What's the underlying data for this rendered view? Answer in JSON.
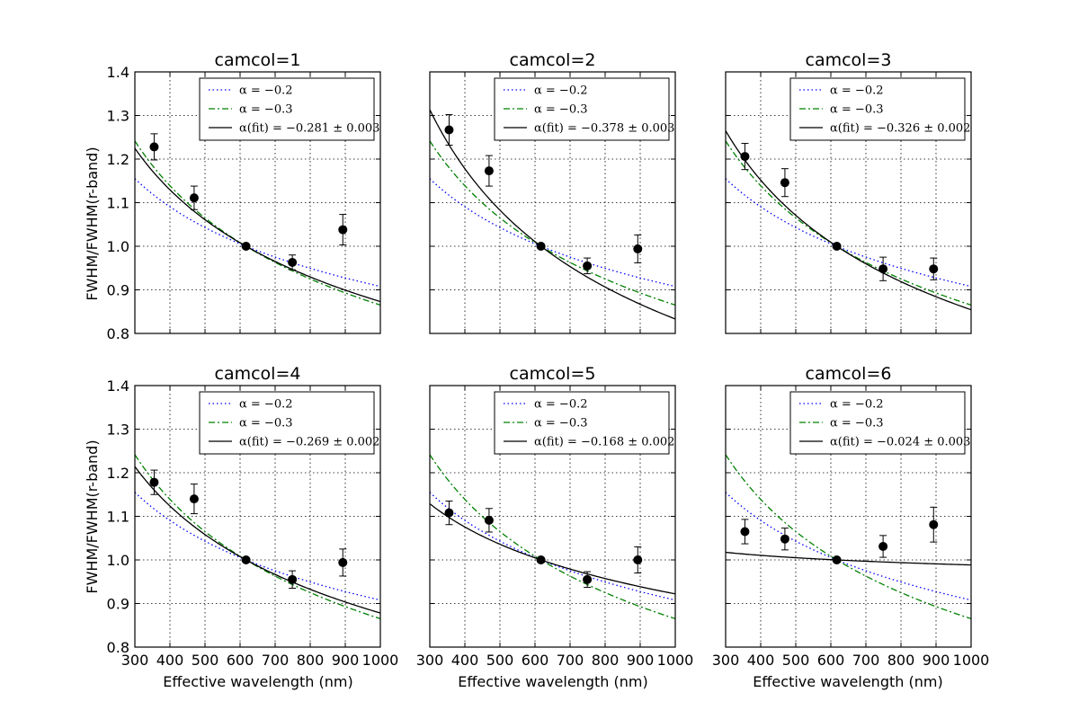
{
  "figure": {
    "ylabel": "FWHM/FWHM(r-band)",
    "xlabel": "Effective wavelength (nm)"
  },
  "colors": {
    "alpha_02": "#0000ff",
    "alpha_03": "#008000",
    "fit": "#000000",
    "points": "#000000"
  },
  "legend_labels": {
    "alpha_02": "α = −0.2",
    "alpha_03": "α = −0.3",
    "fit_prefix": "α(fit) = "
  },
  "chart_data": [
    {
      "type": "line",
      "title": "camcol=1",
      "fit_label": "−0.281 ± 0.003",
      "alpha_fit": -0.281,
      "xlim": [
        300,
        1000
      ],
      "ylim": [
        0.8,
        1.4
      ],
      "xticks": [
        "300",
        "400",
        "500",
        "600",
        "700",
        "800",
        "900",
        "1000"
      ],
      "yticks": [
        "0.8",
        "0.9",
        "1.0",
        "1.1",
        "1.2",
        "1.3",
        "1.4"
      ],
      "points": [
        {
          "x": 355,
          "y": 1.228,
          "err": 0.03
        },
        {
          "x": 469,
          "y": 1.111,
          "err": 0.027
        },
        {
          "x": 617,
          "y": 1.0,
          "err": 0.0
        },
        {
          "x": 749,
          "y": 0.963,
          "err": 0.017
        },
        {
          "x": 893,
          "y": 1.038,
          "err": 0.035
        }
      ]
    },
    {
      "type": "line",
      "title": "camcol=2",
      "fit_label": "−0.378 ± 0.003",
      "alpha_fit": -0.378,
      "xlim": [
        300,
        1000
      ],
      "ylim": [
        0.8,
        1.4
      ],
      "xticks": [
        "300",
        "400",
        "500",
        "600",
        "700",
        "800",
        "900",
        "1000"
      ],
      "yticks": [
        "0.8",
        "0.9",
        "1.0",
        "1.1",
        "1.2",
        "1.3",
        "1.4"
      ],
      "points": [
        {
          "x": 355,
          "y": 1.267,
          "err": 0.035
        },
        {
          "x": 469,
          "y": 1.173,
          "err": 0.035
        },
        {
          "x": 617,
          "y": 1.0,
          "err": 0.0
        },
        {
          "x": 749,
          "y": 0.955,
          "err": 0.018
        },
        {
          "x": 893,
          "y": 0.994,
          "err": 0.032
        }
      ]
    },
    {
      "type": "line",
      "title": "camcol=3",
      "fit_label": "−0.326 ± 0.002",
      "alpha_fit": -0.326,
      "xlim": [
        300,
        1000
      ],
      "ylim": [
        0.8,
        1.4
      ],
      "xticks": [
        "300",
        "400",
        "500",
        "600",
        "700",
        "800",
        "900",
        "1000"
      ],
      "yticks": [
        "0.8",
        "0.9",
        "1.0",
        "1.1",
        "1.2",
        "1.3",
        "1.4"
      ],
      "points": [
        {
          "x": 355,
          "y": 1.206,
          "err": 0.03
        },
        {
          "x": 469,
          "y": 1.146,
          "err": 0.032
        },
        {
          "x": 617,
          "y": 1.0,
          "err": 0.0
        },
        {
          "x": 749,
          "y": 0.948,
          "err": 0.027
        },
        {
          "x": 893,
          "y": 0.948,
          "err": 0.025
        }
      ]
    },
    {
      "type": "line",
      "title": "camcol=4",
      "fit_label": "−0.269 ± 0.002",
      "alpha_fit": -0.269,
      "xlim": [
        300,
        1000
      ],
      "ylim": [
        0.8,
        1.4
      ],
      "xticks": [
        "300",
        "400",
        "500",
        "600",
        "700",
        "800",
        "900",
        "1000"
      ],
      "yticks": [
        "0.8",
        "0.9",
        "1.0",
        "1.1",
        "1.2",
        "1.3",
        "1.4"
      ],
      "points": [
        {
          "x": 355,
          "y": 1.178,
          "err": 0.028
        },
        {
          "x": 469,
          "y": 1.14,
          "err": 0.034
        },
        {
          "x": 617,
          "y": 1.0,
          "err": 0.0
        },
        {
          "x": 749,
          "y": 0.955,
          "err": 0.02
        },
        {
          "x": 893,
          "y": 0.994,
          "err": 0.031
        }
      ]
    },
    {
      "type": "line",
      "title": "camcol=5",
      "fit_label": "−0.168 ± 0.002",
      "alpha_fit": -0.168,
      "xlim": [
        300,
        1000
      ],
      "ylim": [
        0.8,
        1.4
      ],
      "xticks": [
        "300",
        "400",
        "500",
        "600",
        "700",
        "800",
        "900",
        "1000"
      ],
      "yticks": [
        "0.8",
        "0.9",
        "1.0",
        "1.1",
        "1.2",
        "1.3",
        "1.4"
      ],
      "points": [
        {
          "x": 355,
          "y": 1.108,
          "err": 0.027
        },
        {
          "x": 469,
          "y": 1.091,
          "err": 0.027
        },
        {
          "x": 617,
          "y": 1.0,
          "err": 0.0
        },
        {
          "x": 749,
          "y": 0.955,
          "err": 0.018
        },
        {
          "x": 893,
          "y": 1.0,
          "err": 0.03
        }
      ]
    },
    {
      "type": "line",
      "title": "camcol=6",
      "fit_label": "−0.024 ± 0.003",
      "alpha_fit": -0.024,
      "xlim": [
        300,
        1000
      ],
      "ylim": [
        0.8,
        1.4
      ],
      "xticks": [
        "300",
        "400",
        "500",
        "600",
        "700",
        "800",
        "900",
        "1000"
      ],
      "yticks": [
        "0.8",
        "0.9",
        "1.0",
        "1.1",
        "1.2",
        "1.3",
        "1.4"
      ],
      "points": [
        {
          "x": 355,
          "y": 1.065,
          "err": 0.028
        },
        {
          "x": 469,
          "y": 1.048,
          "err": 0.025
        },
        {
          "x": 617,
          "y": 1.0,
          "err": 0.0
        },
        {
          "x": 749,
          "y": 1.031,
          "err": 0.025
        },
        {
          "x": 893,
          "y": 1.081,
          "err": 0.04
        }
      ]
    }
  ],
  "reference_lambda": 617,
  "reference_alphas": [
    -0.2,
    -0.3
  ]
}
